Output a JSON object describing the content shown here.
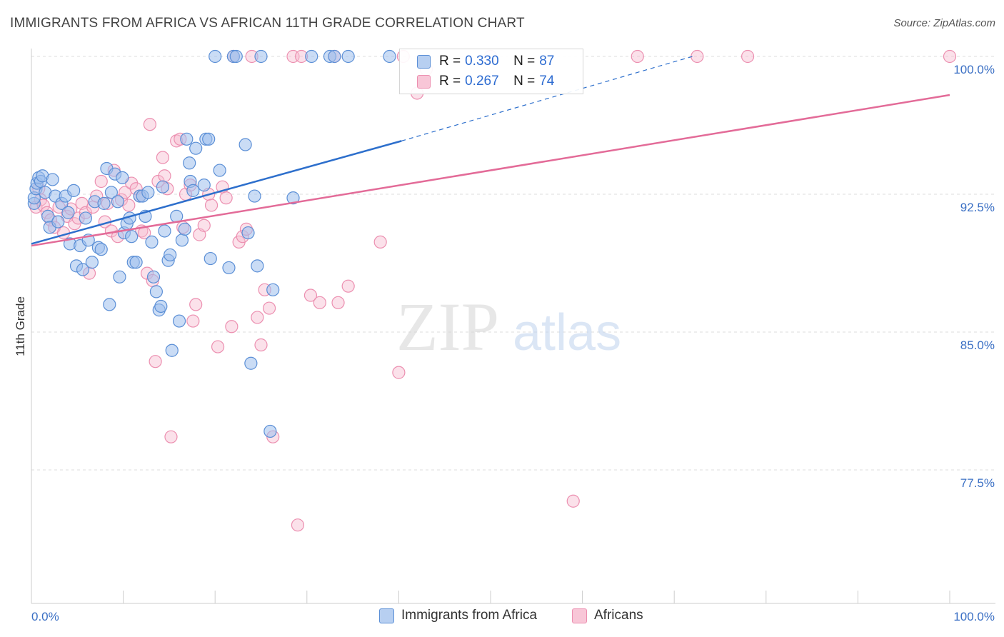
{
  "title": "IMMIGRANTS FROM AFRICA VS AFRICAN 11TH GRADE CORRELATION CHART",
  "source": "Source: ZipAtlas.com",
  "watermark": {
    "zip": "ZIP",
    "atlas": "atlas"
  },
  "legend": {
    "rows": [
      {
        "r_label": "R = ",
        "r_value": "0.330",
        "n_label": "N = ",
        "n_value": "87"
      },
      {
        "r_label": "R = ",
        "r_value": "0.267",
        "n_label": "N = ",
        "n_value": "74"
      }
    ]
  },
  "bottom_legend": [
    "Immigrants from Africa",
    "Africans"
  ],
  "colors": {
    "blue_fill": "#9ec0ec",
    "blue_stroke": "#5b8fd6",
    "blue_line": "#2d6fcc",
    "pink_fill": "#f6bcd0",
    "pink_stroke": "#ec8fb0",
    "pink_line": "#e36b98",
    "tick_text": "#3a6fc4",
    "grid": "#dddddd"
  },
  "chart_data": {
    "type": "scatter",
    "title": "IMMIGRANTS FROM AFRICA VS AFRICAN 11TH GRADE CORRELATION CHART",
    "xlabel": "",
    "ylabel": "11th Grade",
    "xlim": [
      0,
      100
    ],
    "ylim": [
      71.5,
      100.8
    ],
    "x_ticks": [
      "0.0%",
      "100.0%"
    ],
    "y_ticks": [
      {
        "value": 100.0,
        "label": "100.0%"
      },
      {
        "value": 92.5,
        "label": "92.5%"
      },
      {
        "value": 85.0,
        "label": "85.0%"
      },
      {
        "value": 77.5,
        "label": "77.5%"
      }
    ],
    "grid": true,
    "legend_position": "top-center",
    "series": [
      {
        "name": "Immigrants from Africa",
        "color": "#5b8fd6",
        "trend": {
          "x": [
            0,
            40.3
          ],
          "y": [
            89.8,
            95.4
          ],
          "extended_to": [
            72,
            100
          ]
        },
        "points": [
          [
            0.3,
            92.0
          ],
          [
            0.3,
            92.3
          ],
          [
            0.5,
            92.8
          ],
          [
            0.6,
            93.1
          ],
          [
            0.8,
            93.4
          ],
          [
            1.0,
            93.2
          ],
          [
            1.2,
            93.5
          ],
          [
            1.5,
            92.6
          ],
          [
            1.8,
            91.3
          ],
          [
            2.0,
            90.7
          ],
          [
            2.3,
            93.3
          ],
          [
            2.6,
            92.4
          ],
          [
            2.9,
            91.0
          ],
          [
            3.3,
            92.0
          ],
          [
            3.7,
            92.4
          ],
          [
            4.0,
            91.5
          ],
          [
            4.2,
            89.8
          ],
          [
            4.6,
            92.7
          ],
          [
            4.9,
            88.6
          ],
          [
            5.3,
            89.7
          ],
          [
            5.6,
            88.4
          ],
          [
            5.9,
            91.2
          ],
          [
            6.2,
            90.0
          ],
          [
            6.6,
            88.8
          ],
          [
            6.9,
            92.1
          ],
          [
            7.3,
            89.6
          ],
          [
            7.6,
            89.5
          ],
          [
            7.9,
            92.0
          ],
          [
            8.2,
            93.9
          ],
          [
            8.5,
            86.5
          ],
          [
            8.7,
            92.6
          ],
          [
            9.1,
            93.6
          ],
          [
            9.4,
            92.1
          ],
          [
            9.6,
            88.0
          ],
          [
            9.9,
            93.4
          ],
          [
            10.1,
            90.4
          ],
          [
            10.4,
            90.9
          ],
          [
            10.7,
            91.2
          ],
          [
            10.9,
            90.2
          ],
          [
            11.1,
            88.8
          ],
          [
            11.4,
            88.8
          ],
          [
            11.8,
            92.4
          ],
          [
            12.1,
            92.4
          ],
          [
            12.4,
            91.3
          ],
          [
            12.7,
            92.6
          ],
          [
            13.1,
            89.9
          ],
          [
            13.3,
            88.0
          ],
          [
            13.6,
            87.2
          ],
          [
            13.9,
            86.2
          ],
          [
            14.1,
            86.4
          ],
          [
            14.3,
            92.9
          ],
          [
            14.5,
            90.5
          ],
          [
            14.9,
            88.9
          ],
          [
            15.1,
            89.2
          ],
          [
            15.3,
            84.0
          ],
          [
            15.8,
            91.3
          ],
          [
            16.1,
            85.6
          ],
          [
            16.4,
            90.0
          ],
          [
            16.7,
            90.6
          ],
          [
            16.9,
            95.5
          ],
          [
            17.2,
            94.2
          ],
          [
            17.3,
            93.2
          ],
          [
            17.6,
            92.7
          ],
          [
            17.9,
            95.0
          ],
          [
            18.8,
            93.0
          ],
          [
            19.0,
            95.5
          ],
          [
            19.3,
            95.5
          ],
          [
            19.5,
            89.0
          ],
          [
            20.0,
            100.0
          ],
          [
            20.5,
            93.8
          ],
          [
            21.5,
            88.5
          ],
          [
            22.0,
            100.0
          ],
          [
            22.3,
            100.0
          ],
          [
            23.3,
            95.2
          ],
          [
            23.6,
            90.4
          ],
          [
            23.9,
            83.3
          ],
          [
            24.3,
            92.4
          ],
          [
            24.6,
            88.6
          ],
          [
            25.0,
            100.0
          ],
          [
            26.0,
            79.6
          ],
          [
            26.3,
            87.3
          ],
          [
            28.5,
            92.3
          ],
          [
            30.5,
            100.0
          ],
          [
            32.5,
            100.0
          ],
          [
            33.0,
            100.0
          ],
          [
            34.5,
            100.0
          ],
          [
            39.0,
            100.0
          ]
        ]
      },
      {
        "name": "Africans",
        "color": "#ec8fb0",
        "trend": {
          "x": [
            0,
            100
          ],
          "y": [
            89.7,
            97.9
          ]
        },
        "points": [
          [
            0.5,
            91.8
          ],
          [
            0.8,
            92.8
          ],
          [
            1.0,
            92.2
          ],
          [
            1.3,
            91.9
          ],
          [
            1.7,
            91.5
          ],
          [
            2.1,
            91.1
          ],
          [
            2.5,
            90.7
          ],
          [
            3.0,
            91.8
          ],
          [
            3.5,
            90.4
          ],
          [
            3.9,
            91.3
          ],
          [
            4.3,
            91.7
          ],
          [
            4.7,
            90.9
          ],
          [
            5.1,
            91.2
          ],
          [
            5.5,
            92.0
          ],
          [
            5.9,
            91.5
          ],
          [
            6.3,
            88.2
          ],
          [
            6.7,
            91.8
          ],
          [
            7.1,
            92.4
          ],
          [
            7.6,
            93.2
          ],
          [
            8.0,
            91.0
          ],
          [
            8.3,
            92.0
          ],
          [
            8.7,
            90.5
          ],
          [
            9.0,
            93.8
          ],
          [
            9.4,
            90.2
          ],
          [
            9.8,
            92.2
          ],
          [
            10.2,
            92.6
          ],
          [
            10.6,
            91.9
          ],
          [
            10.9,
            93.1
          ],
          [
            11.4,
            92.8
          ],
          [
            11.8,
            92.4
          ],
          [
            12.0,
            90.5
          ],
          [
            12.3,
            90.4
          ],
          [
            12.6,
            88.2
          ],
          [
            12.9,
            96.3
          ],
          [
            13.2,
            87.8
          ],
          [
            13.5,
            83.4
          ],
          [
            13.8,
            93.2
          ],
          [
            14.3,
            94.5
          ],
          [
            14.5,
            93.5
          ],
          [
            14.8,
            92.8
          ],
          [
            15.2,
            79.3
          ],
          [
            15.8,
            95.4
          ],
          [
            16.2,
            95.5
          ],
          [
            16.5,
            90.7
          ],
          [
            16.8,
            92.5
          ],
          [
            17.3,
            93.0
          ],
          [
            17.6,
            85.6
          ],
          [
            17.9,
            86.5
          ],
          [
            18.3,
            90.3
          ],
          [
            18.8,
            90.8
          ],
          [
            19.3,
            92.5
          ],
          [
            19.6,
            91.9
          ],
          [
            20.3,
            84.2
          ],
          [
            20.8,
            92.9
          ],
          [
            21.2,
            92.3
          ],
          [
            21.8,
            85.3
          ],
          [
            22.0,
            100.0
          ],
          [
            22.6,
            89.9
          ],
          [
            23.0,
            90.2
          ],
          [
            23.4,
            90.6
          ],
          [
            24.0,
            100.0
          ],
          [
            24.6,
            85.8
          ],
          [
            25.0,
            84.3
          ],
          [
            25.4,
            87.3
          ],
          [
            25.9,
            86.3
          ],
          [
            26.3,
            79.3
          ],
          [
            28.5,
            100.0
          ],
          [
            29.0,
            74.5
          ],
          [
            29.4,
            100.0
          ],
          [
            30.4,
            87.0
          ],
          [
            31.4,
            86.6
          ],
          [
            33.0,
            100.0
          ],
          [
            33.4,
            86.6
          ],
          [
            34.5,
            87.5
          ],
          [
            38.0,
            89.9
          ],
          [
            40.0,
            82.8
          ],
          [
            40.5,
            100.0
          ],
          [
            42.0,
            98.0
          ],
          [
            43.0,
            99.3
          ],
          [
            50.0,
            100.0
          ],
          [
            59.0,
            75.8
          ],
          [
            66.0,
            100.0
          ],
          [
            72.5,
            100.0
          ],
          [
            78.0,
            100.0
          ],
          [
            100.0,
            100.0
          ]
        ]
      }
    ]
  }
}
